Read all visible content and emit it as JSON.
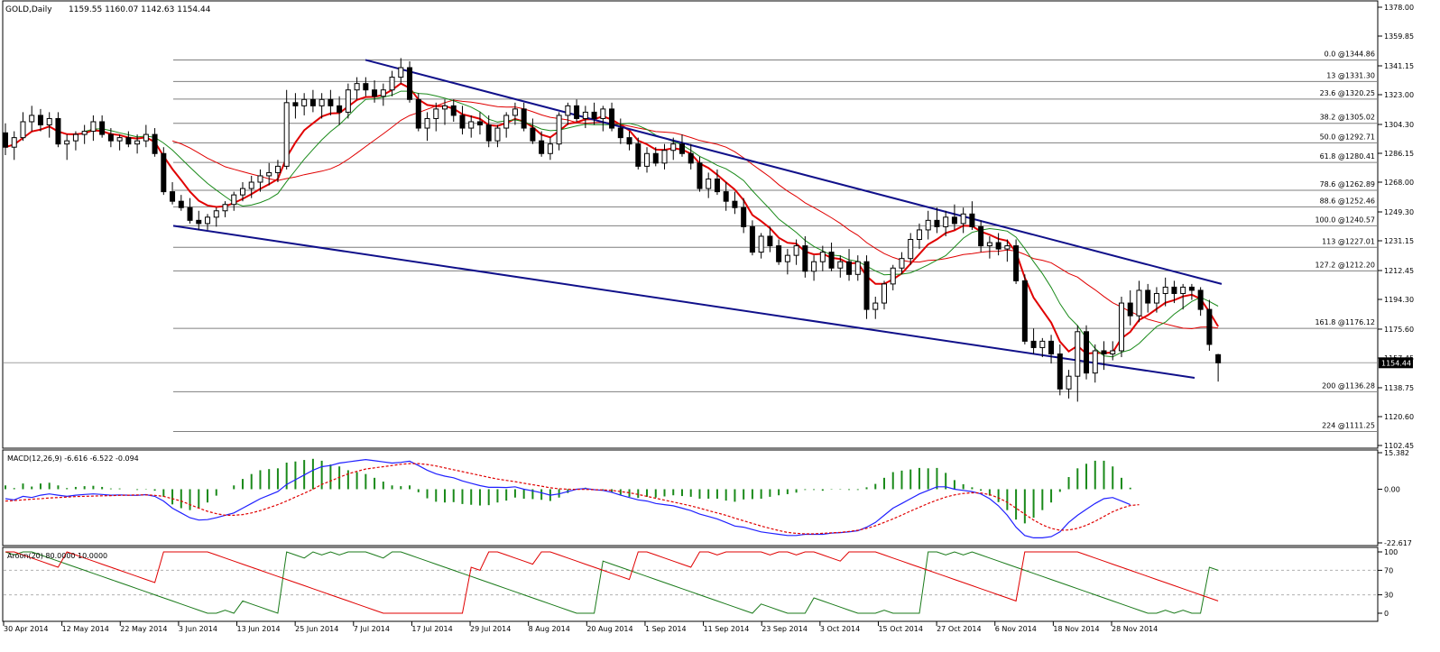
{
  "chart_data": [
    {
      "type": "candlestick",
      "title": "GOLD,Daily",
      "header_values": "1159.55 1160.07 1142.63 1154.44",
      "last_price": "1154.44",
      "ylim": [
        1102.45,
        1378.0
      ],
      "y_ticks": [
        "1378.00",
        "1359.85",
        "1341.15",
        "1323.00",
        "1304.30",
        "1286.15",
        "1268.00",
        "1249.30",
        "1231.15",
        "1212.45",
        "1194.30",
        "1175.60",
        "1157.45",
        "1138.75",
        "1120.60",
        "1102.45"
      ],
      "x_labels": [
        "30 Apr 2014",
        "12 May 2014",
        "22 May 2014",
        "3 Jun 2014",
        "13 Jun 2014",
        "25 Jun 2014",
        "7 Jul 2014",
        "17 Jul 2014",
        "29 Jul 2014",
        "8 Aug 2014",
        "20 Aug 2014",
        "1 Sep 2014",
        "11 Sep 2014",
        "23 Sep 2014",
        "3 Oct 2014",
        "15 Oct 2014",
        "27 Oct 2014",
        "6 Nov 2014",
        "18 Nov 2014",
        "28 Nov 2014"
      ],
      "fib_levels": [
        {
          "label": "0.0  @1344.86",
          "price": 1344.86
        },
        {
          "label": "13 @1331.30",
          "price": 1331.3
        },
        {
          "label": "23.6 @1320.25",
          "price": 1320.25
        },
        {
          "label": "38.2 @1305.02",
          "price": 1305.02
        },
        {
          "label": "50.0 @1292.71",
          "price": 1292.71
        },
        {
          "label": "61.8 @1280.41",
          "price": 1280.41
        },
        {
          "label": "78.6 @1262.89",
          "price": 1262.89
        },
        {
          "label": "88.6 @1252.46",
          "price": 1252.46
        },
        {
          "label": "100.0 @1240.57",
          "price": 1240.57
        },
        {
          "label": "113 @1227.01",
          "price": 1227.01
        },
        {
          "label": "127.2 @1212.20",
          "price": 1212.2
        },
        {
          "label": "161.8 @1176.12",
          "price": 1176.12
        },
        {
          "label": "200 @1136.28",
          "price": 1136.28
        },
        {
          "label": "224 @1111.25",
          "price": 1111.25
        }
      ],
      "candles": [
        [
          1299,
          1305,
          1285,
          1290
        ],
        [
          1290,
          1300,
          1282,
          1296
        ],
        [
          1296,
          1312,
          1294,
          1306
        ],
        [
          1306,
          1316,
          1300,
          1310
        ],
        [
          1310,
          1314,
          1300,
          1304
        ],
        [
          1304,
          1312,
          1296,
          1308
        ],
        [
          1308,
          1312,
          1290,
          1292
        ],
        [
          1292,
          1298,
          1282,
          1294
        ],
        [
          1294,
          1300,
          1288,
          1298
        ],
        [
          1298,
          1304,
          1292,
          1300
        ],
        [
          1300,
          1310,
          1294,
          1306
        ],
        [
          1306,
          1310,
          1296,
          1298
        ],
        [
          1298,
          1302,
          1290,
          1294
        ],
        [
          1294,
          1298,
          1288,
          1296
        ],
        [
          1296,
          1300,
          1290,
          1292
        ],
        [
          1292,
          1298,
          1286,
          1294
        ],
        [
          1294,
          1304,
          1290,
          1298
        ],
        [
          1298,
          1302,
          1284,
          1286
        ],
        [
          1286,
          1290,
          1260,
          1262
        ],
        [
          1262,
          1268,
          1254,
          1256
        ],
        [
          1256,
          1260,
          1250,
          1252
        ],
        [
          1252,
          1258,
          1242,
          1244
        ],
        [
          1244,
          1250,
          1238,
          1242
        ],
        [
          1242,
          1248,
          1238,
          1246
        ],
        [
          1246,
          1252,
          1240,
          1250
        ],
        [
          1250,
          1256,
          1246,
          1254
        ],
        [
          1254,
          1262,
          1250,
          1260
        ],
        [
          1260,
          1268,
          1256,
          1264
        ],
        [
          1264,
          1272,
          1258,
          1268
        ],
        [
          1268,
          1276,
          1262,
          1272
        ],
        [
          1272,
          1280,
          1266,
          1274
        ],
        [
          1274,
          1282,
          1268,
          1278
        ],
        [
          1278,
          1326,
          1276,
          1318
        ],
        [
          1318,
          1324,
          1308,
          1316
        ],
        [
          1316,
          1324,
          1310,
          1320
        ],
        [
          1320,
          1326,
          1312,
          1316
        ],
        [
          1316,
          1324,
          1308,
          1320
        ],
        [
          1320,
          1326,
          1310,
          1316
        ],
        [
          1316,
          1322,
          1304,
          1312
        ],
        [
          1312,
          1330,
          1308,
          1326
        ],
        [
          1326,
          1334,
          1320,
          1330
        ],
        [
          1330,
          1334,
          1322,
          1326
        ],
        [
          1326,
          1332,
          1318,
          1322
        ],
        [
          1322,
          1330,
          1316,
          1326
        ],
        [
          1326,
          1338,
          1322,
          1334
        ],
        [
          1334,
          1346,
          1330,
          1340
        ],
        [
          1340,
          1344,
          1318,
          1320
        ],
        [
          1320,
          1324,
          1300,
          1302
        ],
        [
          1302,
          1312,
          1294,
          1308
        ],
        [
          1308,
          1318,
          1300,
          1314
        ],
        [
          1314,
          1320,
          1304,
          1316
        ],
        [
          1316,
          1320,
          1306,
          1310
        ],
        [
          1310,
          1316,
          1298,
          1302
        ],
        [
          1302,
          1310,
          1296,
          1306
        ],
        [
          1306,
          1312,
          1298,
          1304
        ],
        [
          1304,
          1310,
          1290,
          1294
        ],
        [
          1294,
          1304,
          1290,
          1302
        ],
        [
          1302,
          1312,
          1296,
          1310
        ],
        [
          1310,
          1318,
          1304,
          1314
        ],
        [
          1314,
          1318,
          1300,
          1302
        ],
        [
          1302,
          1308,
          1292,
          1294
        ],
        [
          1294,
          1300,
          1284,
          1286
        ],
        [
          1286,
          1296,
          1282,
          1292
        ],
        [
          1292,
          1312,
          1288,
          1310
        ],
        [
          1310,
          1318,
          1304,
          1316
        ],
        [
          1316,
          1320,
          1306,
          1308
        ],
        [
          1308,
          1316,
          1302,
          1312
        ],
        [
          1312,
          1318,
          1304,
          1308
        ],
        [
          1308,
          1316,
          1300,
          1314
        ],
        [
          1314,
          1318,
          1300,
          1302
        ],
        [
          1302,
          1308,
          1292,
          1296
        ],
        [
          1296,
          1300,
          1288,
          1292
        ],
        [
          1292,
          1296,
          1276,
          1278
        ],
        [
          1278,
          1290,
          1274,
          1286
        ],
        [
          1286,
          1290,
          1278,
          1280
        ],
        [
          1280,
          1292,
          1276,
          1288
        ],
        [
          1288,
          1296,
          1282,
          1292
        ],
        [
          1292,
          1298,
          1284,
          1286
        ],
        [
          1286,
          1292,
          1276,
          1280
        ],
        [
          1280,
          1284,
          1262,
          1264
        ],
        [
          1264,
          1274,
          1258,
          1270
        ],
        [
          1270,
          1276,
          1260,
          1262
        ],
        [
          1262,
          1268,
          1250,
          1256
        ],
        [
          1256,
          1262,
          1248,
          1252
        ],
        [
          1252,
          1258,
          1236,
          1240
        ],
        [
          1240,
          1244,
          1222,
          1224
        ],
        [
          1224,
          1236,
          1220,
          1234
        ],
        [
          1234,
          1240,
          1224,
          1228
        ],
        [
          1228,
          1232,
          1216,
          1218
        ],
        [
          1218,
          1226,
          1210,
          1222
        ],
        [
          1222,
          1232,
          1216,
          1228
        ],
        [
          1228,
          1234,
          1208,
          1212
        ],
        [
          1212,
          1222,
          1206,
          1218
        ],
        [
          1218,
          1228,
          1212,
          1224
        ],
        [
          1224,
          1230,
          1212,
          1214
        ],
        [
          1214,
          1222,
          1208,
          1218
        ],
        [
          1218,
          1226,
          1206,
          1210
        ],
        [
          1210,
          1222,
          1206,
          1218
        ],
        [
          1218,
          1222,
          1182,
          1188
        ],
        [
          1188,
          1196,
          1182,
          1192
        ],
        [
          1192,
          1206,
          1188,
          1204
        ],
        [
          1204,
          1216,
          1200,
          1214
        ],
        [
          1214,
          1224,
          1210,
          1220
        ],
        [
          1220,
          1236,
          1216,
          1232
        ],
        [
          1232,
          1242,
          1226,
          1238
        ],
        [
          1238,
          1250,
          1232,
          1244
        ],
        [
          1244,
          1252,
          1236,
          1240
        ],
        [
          1240,
          1250,
          1234,
          1246
        ],
        [
          1246,
          1254,
          1238,
          1242
        ],
        [
          1242,
          1252,
          1236,
          1248
        ],
        [
          1248,
          1256,
          1238,
          1240
        ],
        [
          1240,
          1244,
          1224,
          1228
        ],
        [
          1228,
          1234,
          1220,
          1230
        ],
        [
          1230,
          1236,
          1222,
          1226
        ],
        [
          1226,
          1232,
          1218,
          1228
        ],
        [
          1228,
          1232,
          1204,
          1206
        ],
        [
          1206,
          1210,
          1166,
          1168
        ],
        [
          1168,
          1176,
          1160,
          1164
        ],
        [
          1164,
          1170,
          1158,
          1168
        ],
        [
          1168,
          1172,
          1154,
          1160
        ],
        [
          1160,
          1166,
          1134,
          1138
        ],
        [
          1138,
          1150,
          1132,
          1146
        ],
        [
          1146,
          1178,
          1130,
          1174
        ],
        [
          1174,
          1178,
          1144,
          1148
        ],
        [
          1148,
          1166,
          1142,
          1162
        ],
        [
          1162,
          1168,
          1150,
          1160
        ],
        [
          1160,
          1168,
          1156,
          1162
        ],
        [
          1162,
          1196,
          1158,
          1192
        ],
        [
          1192,
          1200,
          1178,
          1184
        ],
        [
          1184,
          1206,
          1180,
          1200
        ],
        [
          1200,
          1204,
          1186,
          1192
        ],
        [
          1192,
          1202,
          1186,
          1198
        ],
        [
          1198,
          1208,
          1190,
          1202
        ],
        [
          1202,
          1206,
          1192,
          1198
        ],
        [
          1198,
          1204,
          1188,
          1202
        ],
        [
          1202,
          1204,
          1194,
          1200
        ],
        [
          1200,
          1202,
          1184,
          1188
        ],
        [
          1188,
          1194,
          1162,
          1166
        ],
        [
          1159.55,
          1160.07,
          1142.63,
          1154.44
        ]
      ],
      "macd": {
        "label": "MACD(12,26,9) -6.616 -6.522 -0.094",
        "ylim": [
          -22.617,
          15.382
        ],
        "y_ticks": [
          "15.382",
          "0.00",
          "-22.617"
        ],
        "macd_line": [
          -4,
          -4.5,
          -3,
          -3.5,
          -2.5,
          -2,
          -2.5,
          -3,
          -2.5,
          -2.2,
          -2,
          -2.2,
          -2.5,
          -2.4,
          -2.5,
          -2.6,
          -2.3,
          -3,
          -5,
          -8,
          -10,
          -12,
          -13,
          -12.8,
          -12,
          -11,
          -10,
          -8,
          -6,
          -4,
          -2.5,
          -1,
          2,
          4,
          6,
          8,
          9.5,
          10,
          11,
          11.5,
          12,
          12.5,
          12,
          11.5,
          11,
          11.3,
          11.8,
          10,
          8,
          6.5,
          5.5,
          4.8,
          3.5,
          2.5,
          1.5,
          0.8,
          0.8,
          0.7,
          1,
          0,
          -0.7,
          -1.5,
          -2.5,
          -2,
          -1,
          0,
          0.3,
          -0.2,
          -0.5,
          -1.3,
          -2.5,
          -3.5,
          -4.5,
          -5,
          -6,
          -6.5,
          -7,
          -8,
          -9,
          -10.5,
          -11.5,
          -12.5,
          -14,
          -15.5,
          -16,
          -17,
          -18,
          -18.5,
          -19,
          -19.5,
          -19.5,
          -19,
          -19,
          -19,
          -18.5,
          -18.3,
          -18,
          -17.5,
          -16,
          -14,
          -11,
          -8,
          -6,
          -4,
          -2,
          -0.5,
          1,
          1,
          0,
          -0.5,
          -1,
          -2,
          -4,
          -7,
          -11,
          -16,
          -19.5,
          -20.5,
          -20.5,
          -20,
          -18,
          -14,
          -11,
          -8.5,
          -6,
          -4,
          -3.5,
          -5,
          -6.5
        ],
        "signal_line": [
          -5,
          -4.8,
          -4.5,
          -4.2,
          -4,
          -3.7,
          -3.5,
          -3.3,
          -3.1,
          -3,
          -2.9,
          -2.8,
          -2.7,
          -2.6,
          -2.5,
          -2.4,
          -2.4,
          -2.6,
          -3,
          -4,
          -5,
          -6.5,
          -8,
          -9.3,
          -10.3,
          -11,
          -11,
          -10.7,
          -10,
          -9,
          -7.8,
          -6.5,
          -5,
          -3.3,
          -1.7,
          0,
          2,
          3.5,
          5,
          6.5,
          7.5,
          8.5,
          9,
          9.5,
          10,
          10.5,
          10.8,
          10.8,
          10.4,
          9.8,
          9,
          8.2,
          7.4,
          6.6,
          5.8,
          5,
          4.3,
          3.7,
          3.2,
          2.5,
          1.9,
          1.3,
          0.6,
          0.2,
          0,
          -0.1,
          -0.1,
          -0.2,
          -0.3,
          -0.5,
          -1,
          -1.5,
          -2.2,
          -3,
          -3.8,
          -4.6,
          -5.4,
          -6.2,
          -7,
          -8,
          -9,
          -10,
          -11,
          -12.2,
          -13.3,
          -14.4,
          -15.5,
          -16.5,
          -17.4,
          -18.2,
          -18.6,
          -18.8,
          -18.8,
          -18.6,
          -18.4,
          -18.2,
          -17.8,
          -17.3,
          -16.5,
          -15.4,
          -14,
          -12.5,
          -10.9,
          -9.2,
          -7.6,
          -6,
          -4.6,
          -3.3,
          -2.4,
          -1.8,
          -1.5,
          -1.6,
          -2.3,
          -3.6,
          -5.5,
          -8,
          -10.5,
          -13,
          -15,
          -16.5,
          -17.3,
          -17.2,
          -16.5,
          -15.2,
          -13.5,
          -11.5,
          -9.5,
          -8,
          -6.9,
          -6.5
        ]
      },
      "aroon": {
        "label": "Aroon(20) 80.0000 10.0000",
        "ylim": [
          0,
          100
        ],
        "y_ticks": [
          "100",
          "70",
          "30",
          "0"
        ]
      }
    }
  ]
}
